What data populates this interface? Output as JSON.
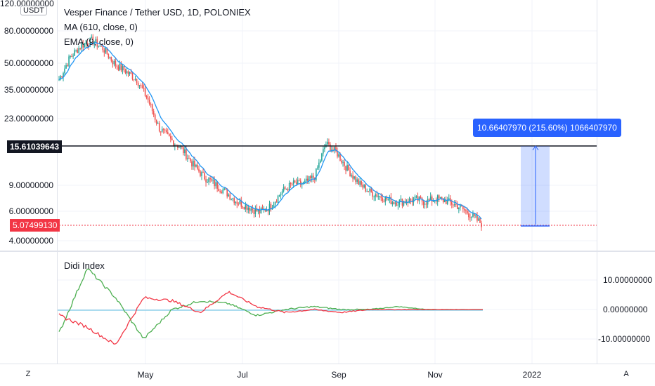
{
  "header": {
    "symbol_title": "Vesper Finance / Tether USD, 1D, POLONIEX",
    "ma_legend": "MA (610, close, 0)",
    "ema_legend": "EMA (9, close, 0)",
    "currency": "USDT"
  },
  "price_axis": {
    "ticks": [
      "120.00000000",
      "80.00000000",
      "50.00000000",
      "35.00000000",
      "23.00000000",
      "9.00000000",
      "6.00000000",
      "4.00000000"
    ],
    "marked_level": "15.61039643",
    "last_price": "5.07499130"
  },
  "indicator": {
    "name": "Didi Index",
    "ticks": [
      "10.00000000",
      "0.00000000",
      "-10.00000000"
    ]
  },
  "time_axis": {
    "ticks": [
      "May",
      "Jul",
      "Sep",
      "Nov",
      "2022"
    ],
    "left_button": "Z",
    "right_button": "A"
  },
  "measure_tool": {
    "label": "10.66407970 (215.60%) 1066407970"
  },
  "colors": {
    "up": "#26a69a",
    "down": "#ef5350",
    "ema": "#2196f3",
    "didi_green": "#4caf50",
    "didi_red": "#f23645",
    "measure": "#2962ff"
  },
  "chart_data": {
    "type": "candlestick",
    "approx_closes_usdt": [
      40,
      55,
      65,
      70,
      62,
      50,
      45,
      40,
      30,
      20,
      17,
      15,
      12,
      10,
      9,
      8,
      7,
      6.5,
      6,
      6.5,
      8,
      9,
      9,
      10,
      16,
      14,
      11,
      9,
      8,
      7.5,
      7,
      7,
      7.2,
      7,
      7.3,
      7,
      6.5,
      5.8,
      5.1
    ],
    "didi_approx": {
      "green": [
        -8,
        14,
        4,
        -10,
        0,
        3,
        2,
        -2,
        0,
        1,
        0,
        0,
        1,
        0,
        0,
        0
      ],
      "red": [
        -2,
        -6,
        -12,
        4,
        3,
        -1,
        6,
        1,
        -1,
        0,
        -1,
        0,
        0,
        0,
        0,
        0
      ]
    }
  }
}
